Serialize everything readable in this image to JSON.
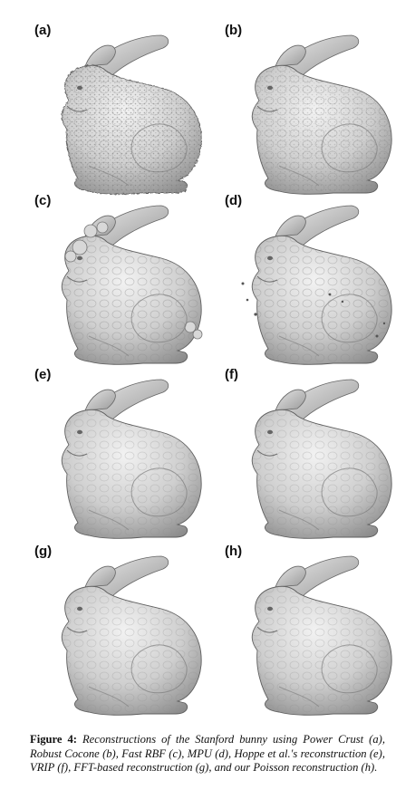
{
  "panels": [
    {
      "label": "(a)",
      "variant": "noisy"
    },
    {
      "label": "(b)",
      "variant": "textured"
    },
    {
      "label": "(c)",
      "variant": "blobby"
    },
    {
      "label": "(d)",
      "variant": "speckled"
    },
    {
      "label": "(e)",
      "variant": "smooth"
    },
    {
      "label": "(f)",
      "variant": "smooth"
    },
    {
      "label": "(g)",
      "variant": "smooth"
    },
    {
      "label": "(h)",
      "variant": "smooth"
    }
  ],
  "caption": {
    "figure": "Figure 4:",
    "text": "Reconstructions of the Stanford bunny using Power Crust (a), Robust Cocone (b), Fast RBF (c), MPU (d), Hoppe et al.'s reconstruction (e), VRIP (f), FFT-based reconstruction (g), and our Poisson reconstruction (h)."
  },
  "colors": {
    "mesh_light": "#e8e8e8",
    "mesh_mid": "#bdbdbd",
    "mesh_dark": "#6f6f6f"
  }
}
